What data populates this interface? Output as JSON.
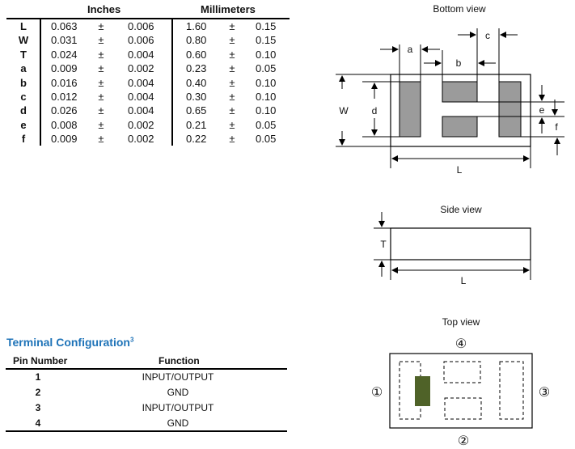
{
  "dimensions_table": {
    "headers": {
      "inches": "Inches",
      "millimeters": "Millimeters"
    },
    "plus_minus": "±",
    "rows": [
      {
        "label": "L",
        "in_nom": "0.063",
        "in_tol": "0.006",
        "mm_nom": "1.60",
        "mm_tol": "0.15"
      },
      {
        "label": "W",
        "in_nom": "0.031",
        "in_tol": "0.006",
        "mm_nom": "0.80",
        "mm_tol": "0.15"
      },
      {
        "label": "T",
        "in_nom": "0.024",
        "in_tol": "0.004",
        "mm_nom": "0.60",
        "mm_tol": "0.10"
      },
      {
        "label": "a",
        "in_nom": "0.009",
        "in_tol": "0.002",
        "mm_nom": "0.23",
        "mm_tol": "0.05"
      },
      {
        "label": "b",
        "in_nom": "0.016",
        "in_tol": "0.004",
        "mm_nom": "0.40",
        "mm_tol": "0.10"
      },
      {
        "label": "c",
        "in_nom": "0.012",
        "in_tol": "0.004",
        "mm_nom": "0.30",
        "mm_tol": "0.10"
      },
      {
        "label": "d",
        "in_nom": "0.026",
        "in_tol": "0.004",
        "mm_nom": "0.65",
        "mm_tol": "0.10"
      },
      {
        "label": "e",
        "in_nom": "0.008",
        "in_tol": "0.002",
        "mm_nom": "0.21",
        "mm_tol": "0.05"
      },
      {
        "label": "f",
        "in_nom": "0.009",
        "in_tol": "0.002",
        "mm_nom": "0.22",
        "mm_tol": "0.05"
      }
    ]
  },
  "terminal_config": {
    "title": "Terminal Configuration",
    "footnote": "3",
    "title_color": "#1e73b8",
    "headers": {
      "pin": "Pin Number",
      "function": "Function"
    },
    "rows": [
      {
        "pin": "1",
        "function": "INPUT/OUTPUT"
      },
      {
        "pin": "2",
        "function": "GND"
      },
      {
        "pin": "3",
        "function": "INPUT/OUTPUT"
      },
      {
        "pin": "4",
        "function": "GND"
      }
    ]
  },
  "bottom_view": {
    "title": "Bottom view",
    "labels": {
      "a": "a",
      "b": "b",
      "c": "c",
      "d": "d",
      "e": "e",
      "f": "f",
      "W": "W",
      "L": "L"
    },
    "pad_color": "#9b9b9b"
  },
  "side_view": {
    "title": "Side view",
    "labels": {
      "T": "T",
      "L": "L"
    }
  },
  "top_view": {
    "title": "Top view",
    "pins": {
      "p1": "①",
      "p2": "②",
      "p3": "③",
      "p4": "④"
    },
    "marker_color": "#4f6228"
  }
}
